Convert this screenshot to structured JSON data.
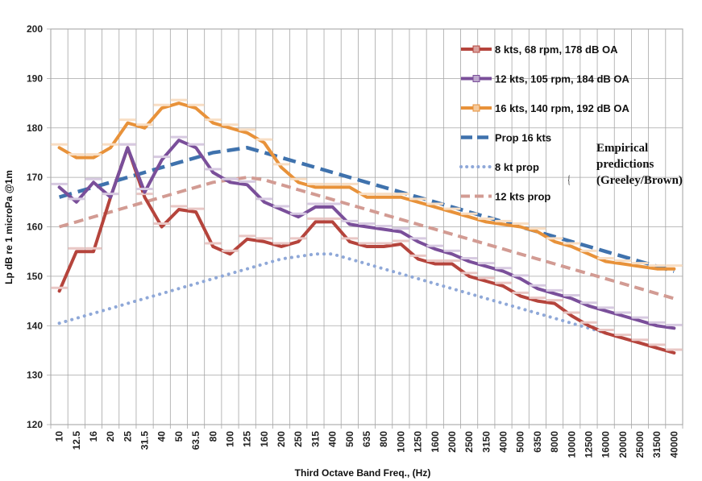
{
  "chart_data": {
    "type": "line",
    "title": "",
    "xlabel": "Third Octave Band Freq., (Hz)",
    "ylabel": "Lp dB re 1 microPa @1m",
    "ylim": [
      120,
      200
    ],
    "yticks": [
      120,
      130,
      140,
      150,
      160,
      170,
      180,
      190,
      200
    ],
    "grid": true,
    "legend_position": "top-right",
    "categories": [
      "10",
      "12.5",
      "16",
      "20",
      "25",
      "31.5",
      "40",
      "50",
      "63.5",
      "80",
      "100",
      "125",
      "160",
      "200",
      "250",
      "315",
      "400",
      "500",
      "635",
      "800",
      "1000",
      "1250",
      "1600",
      "2000",
      "2500",
      "3150",
      "4000",
      "5000",
      "6350",
      "8000",
      "10000",
      "12500",
      "16000",
      "20000",
      "25000",
      "31500",
      "40000"
    ],
    "series": [
      {
        "name": "8 kts, 68 rpm, 178 dB OA",
        "style": "solid-marker",
        "color": "#b5443c",
        "values": [
          147,
          155,
          155,
          166,
          176,
          166,
          160,
          163.5,
          163,
          156,
          154.5,
          157.5,
          157,
          156,
          157,
          161,
          161,
          157,
          156,
          156,
          156.5,
          153.5,
          152.5,
          152.5,
          150,
          149,
          148,
          146,
          145,
          144.5,
          142,
          140,
          138.5,
          137.5,
          136.5,
          135.5,
          134.5
        ]
      },
      {
        "name": "12 kts, 105 rpm, 184 dB OA",
        "style": "solid-marker",
        "color": "#7a4f9a",
        "values": [
          168,
          165,
          169,
          166,
          176,
          167,
          173.5,
          177.5,
          176,
          171,
          169,
          168.5,
          165,
          163.5,
          162,
          164,
          164,
          160.5,
          160,
          159.5,
          159,
          157,
          155.5,
          154.5,
          153,
          152,
          151,
          149.5,
          147.5,
          146.5,
          145.5,
          144,
          143,
          142,
          141,
          140,
          139.5
        ]
      },
      {
        "name": "16 kts, 140 rpm, 192 dB OA",
        "style": "solid-marker",
        "color": "#e8923a",
        "values": [
          176,
          174,
          174,
          176,
          181,
          180,
          184,
          185,
          184,
          181,
          180,
          179,
          177,
          172,
          169,
          168,
          168,
          168,
          166,
          166,
          166,
          165,
          164,
          163,
          162,
          161,
          160.5,
          160,
          159,
          157,
          156,
          154.5,
          153,
          152.5,
          152,
          151.5,
          151.5
        ]
      },
      {
        "name": "Prop 16 kts",
        "style": "long-dash",
        "color": "#3f72ad",
        "values": [
          166,
          167,
          168,
          169,
          170,
          171,
          172,
          173,
          174,
          175,
          175.5,
          176,
          175,
          174,
          173,
          172,
          171,
          170,
          169,
          168,
          167,
          166,
          165,
          164,
          163,
          162,
          161,
          160,
          159,
          158,
          157,
          156,
          155,
          154,
          153,
          152,
          151
        ]
      },
      {
        "name": "8 kt prop",
        "style": "dotted",
        "color": "#8fa8d8",
        "values": [
          140.5,
          141.5,
          142.5,
          143.5,
          144.5,
          145.5,
          146.5,
          147.5,
          148.5,
          149.5,
          150.5,
          151.5,
          152.5,
          153.5,
          154,
          154.5,
          154.5,
          153.5,
          152.5,
          151.5,
          150.5,
          149.5,
          148.5,
          147.5,
          146.5,
          145.5,
          144.5,
          143.5,
          142.5,
          141.5,
          140.5,
          139.5,
          138.5,
          137.5,
          136.5,
          135.5,
          134.5
        ]
      },
      {
        "name": "12 kts prop",
        "style": "dash",
        "color": "#d29b93",
        "values": [
          160,
          161,
          162,
          163,
          164,
          165,
          166,
          167,
          168,
          169,
          169.5,
          170,
          169.5,
          168.5,
          167.5,
          166.5,
          165.5,
          164.5,
          163.5,
          162.5,
          161.5,
          160.5,
          159.5,
          158.5,
          157.5,
          156.5,
          155.5,
          154.5,
          153.5,
          152.5,
          151.5,
          150.5,
          149.5,
          148.5,
          147.5,
          146.5,
          145.5
        ]
      }
    ],
    "annotation": {
      "lines": [
        "Empirical",
        "predictions",
        "(Greeley/Brown)"
      ],
      "brace": "{"
    }
  }
}
